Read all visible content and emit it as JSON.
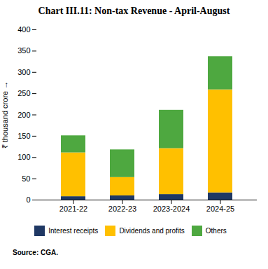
{
  "chart_data": {
    "type": "bar",
    "stacked": true,
    "title": "Chart III.11: Non-tax Revenue - April-August",
    "categories": [
      "2021-22",
      "2022-23",
      "2023-2024",
      "2024-25"
    ],
    "series": [
      {
        "name": "Interest receipts",
        "color": "#1f3864",
        "values": [
          8,
          10,
          13,
          17
        ]
      },
      {
        "name": "Dividends and profits",
        "color": "#ffc000",
        "values": [
          103,
          43,
          108,
          242
        ]
      },
      {
        "name": "Others",
        "color": "#4ea840",
        "values": [
          40,
          65,
          90,
          78
        ]
      }
    ],
    "ylabel": "₹ thousand crore",
    "ylim": [
      0,
      400
    ],
    "yticks": [
      0,
      50,
      100,
      150,
      200,
      250,
      300,
      350,
      400
    ],
    "grid": false,
    "legend": "bottom",
    "source": "Source: CGA."
  }
}
